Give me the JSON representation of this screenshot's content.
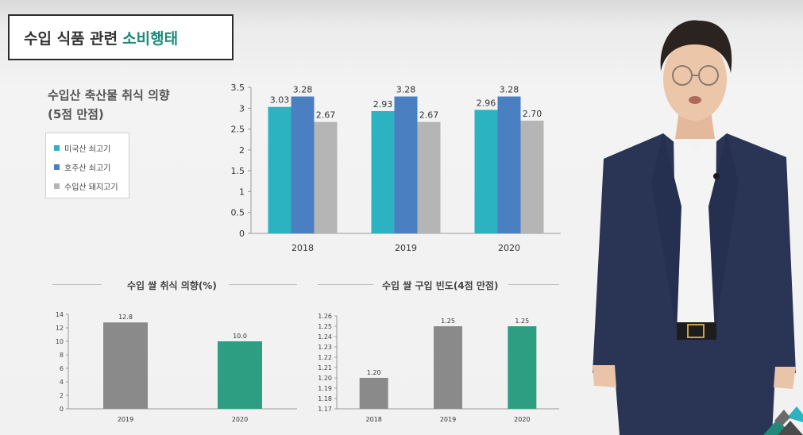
{
  "slide": {
    "title_main": "수입 식품 관련",
    "title_highlight": "소비행태"
  },
  "colors": {
    "teal": "#2bb3c2",
    "blue": "#4a7fc1",
    "gray": "#b5b5b5",
    "dark_gray": "#8a8a8a",
    "green": "#2e9e82",
    "title_highlight": "#1f8a7a"
  },
  "main_chart": {
    "heading_line1": "수입산 축산물 취식 의향",
    "heading_line2": "(5점 만점)"
  },
  "chart_data": [
    {
      "type": "bar",
      "title": "수입산 축산물 취식 의향 (5점 만점)",
      "categories": [
        "2018",
        "2019",
        "2020"
      ],
      "series": [
        {
          "name": "미국산 쇠고기",
          "values": [
            3.03,
            2.93,
            2.96
          ],
          "labels": [
            "3.03",
            "2.93",
            "2.96"
          ],
          "color": "#2bb3c2"
        },
        {
          "name": "호주산 쇠고기",
          "values": [
            3.28,
            3.28,
            3.28
          ],
          "labels": [
            "3.28",
            "3.28",
            "3.28"
          ],
          "color": "#4a7fc1"
        },
        {
          "name": "수입산 돼지고기",
          "values": [
            2.67,
            2.67,
            2.7
          ],
          "labels": [
            "2.67",
            "2.67",
            "2.70"
          ],
          "color": "#b5b5b5"
        }
      ],
      "ylim": [
        0,
        3.5
      ],
      "yticks": [
        "0",
        "0.5",
        "1",
        "1.5",
        "2",
        "2.5",
        "3",
        "3.5"
      ],
      "legend": "left"
    },
    {
      "type": "bar",
      "title": "수입 쌀 취식 의향(%)",
      "categories": [
        "2019",
        "2020"
      ],
      "values": [
        12.8,
        10.0
      ],
      "labels": [
        "12.8",
        "10.0"
      ],
      "colors": [
        "#8a8a8a",
        "#2e9e82"
      ],
      "ylim": [
        0,
        14
      ],
      "yticks": [
        "0",
        "2",
        "4",
        "6",
        "8",
        "10",
        "12",
        "14"
      ]
    },
    {
      "type": "bar",
      "title": "수입 쌀 구입 빈도(4점 만점)",
      "categories": [
        "2018",
        "2019",
        "2020"
      ],
      "values": [
        1.2,
        1.25,
        1.25
      ],
      "labels": [
        "1.20",
        "1.25",
        "1.25"
      ],
      "colors": [
        "#8a8a8a",
        "#8a8a8a",
        "#2e9e82"
      ],
      "ylim": [
        1.17,
        1.26
      ],
      "yticks": [
        "1.17",
        "1.18",
        "1.19",
        "1.20",
        "1.21",
        "1.22",
        "1.23",
        "1.24",
        "1.25",
        "1.26"
      ]
    }
  ]
}
